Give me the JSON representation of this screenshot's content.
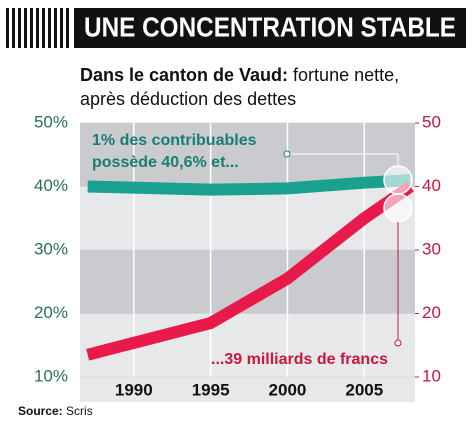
{
  "chart_data": {
    "type": "line",
    "title": "UNE CONCENTRATION STABLE",
    "subtitle_bold": "Dans le canton de Vaud:",
    "subtitle_rest": " fortune nette,",
    "subtitle_line2": "après déduction des dettes",
    "annotations": [
      "1% des contribuables",
      "possède 40,6% et...",
      "...39 milliards de francs"
    ],
    "source_label": "Source:",
    "source": "Scris",
    "x": [
      1987,
      1995,
      2000,
      2005,
      2008
    ],
    "xlim": [
      1986.5,
      2008.3
    ],
    "xticks": [
      1990,
      1995,
      2000,
      2005
    ],
    "series": [
      {
        "color": "#1aa08e",
        "axis": "y",
        "values": [
          40,
          39.5,
          39.7,
          40.6,
          41
        ]
      },
      {
        "color": "#e8194b",
        "axis": "y2",
        "values": [
          13.5,
          18.5,
          25.5,
          35,
          40
        ]
      }
    ],
    "ylim": [
      10,
      50
    ],
    "yticks": [
      {
        "value": 10,
        "label": "10%"
      },
      {
        "value": 20,
        "label": "20%"
      },
      {
        "value": 30,
        "label": "30%"
      },
      {
        "value": 40,
        "label": "40%"
      },
      {
        "value": 50,
        "label": "50%"
      }
    ],
    "y2lim": [
      10,
      50
    ],
    "y2ticks": [
      10,
      20,
      30,
      40,
      50
    ],
    "grid": true
  }
}
